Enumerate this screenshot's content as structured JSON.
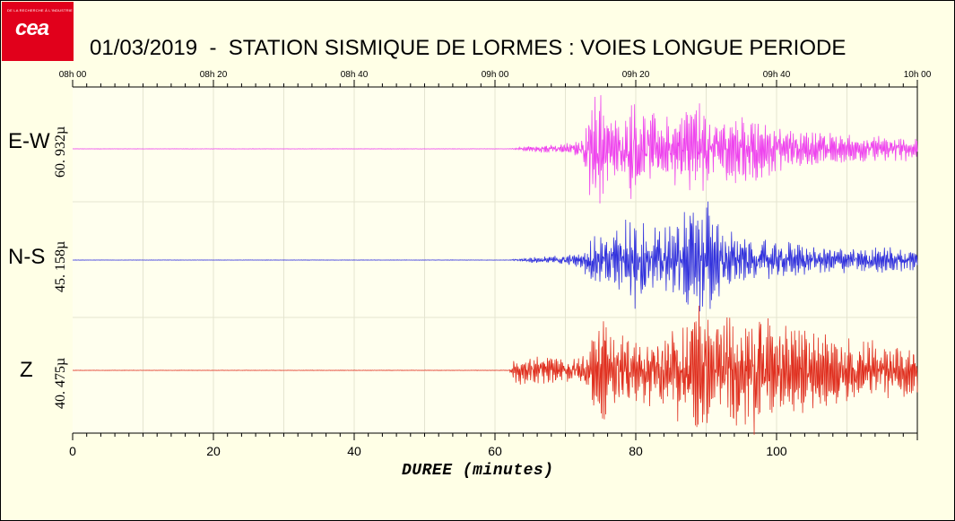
{
  "logo": {
    "tagline": "DE LA RECHERCHE À L'INDUSTRIE",
    "text": "cea"
  },
  "title": "01/03/2019  -  STATION SISMIQUE DE LORMES : VOIES LONGUE PERIODE",
  "chart_data": {
    "type": "line",
    "x_top_ticks": [
      "08h 00",
      "08h 20",
      "08h 40",
      "09h 00",
      "09h 20",
      "09h 40",
      "10h 00"
    ],
    "x_bottom_ticks": [
      "0",
      "20",
      "40",
      "60",
      "80",
      "100"
    ],
    "xlabel": "DUREE (minutes)",
    "xlim": [
      0,
      120
    ],
    "grid": true,
    "series": [
      {
        "name": "E-W",
        "amplitude_label": "60. 932µ",
        "color": "#ee44ee",
        "envelope": [
          [
            0,
            0.002
          ],
          [
            62,
            0.003
          ],
          [
            63,
            0.02
          ],
          [
            66,
            0.05
          ],
          [
            70,
            0.08
          ],
          [
            72.5,
            0.12
          ],
          [
            73.5,
            0.7
          ],
          [
            75,
            0.95
          ],
          [
            76,
            0.6
          ],
          [
            78,
            0.3
          ],
          [
            80,
            1.0
          ],
          [
            81,
            0.55
          ],
          [
            84,
            0.45
          ],
          [
            89,
            0.75
          ],
          [
            91,
            0.35
          ],
          [
            95,
            0.6
          ],
          [
            98,
            0.45
          ],
          [
            102,
            0.3
          ],
          [
            110,
            0.2
          ],
          [
            120,
            0.18
          ]
        ]
      },
      {
        "name": "N-S",
        "amplitude_label": "45. 158µ",
        "color": "#3333dd",
        "envelope": [
          [
            0,
            0.002
          ],
          [
            62,
            0.003
          ],
          [
            63,
            0.02
          ],
          [
            66,
            0.05
          ],
          [
            70,
            0.08
          ],
          [
            72.5,
            0.12
          ],
          [
            73.5,
            0.45
          ],
          [
            76,
            0.35
          ],
          [
            79,
            0.7
          ],
          [
            80,
            1.0
          ],
          [
            82,
            0.5
          ],
          [
            85,
            0.55
          ],
          [
            87,
            0.8
          ],
          [
            88.5,
            0.9
          ],
          [
            90,
            1.0
          ],
          [
            92,
            0.55
          ],
          [
            95,
            0.35
          ],
          [
            100,
            0.3
          ],
          [
            110,
            0.2
          ],
          [
            120,
            0.2
          ]
        ]
      },
      {
        "name": "Z",
        "amplitude_label": "40. 475µ",
        "color": "#e03020",
        "envelope": [
          [
            0,
            0.002
          ],
          [
            62,
            0.003
          ],
          [
            63,
            0.2
          ],
          [
            66,
            0.2
          ],
          [
            70,
            0.15
          ],
          [
            73,
            0.3
          ],
          [
            75,
            0.95
          ],
          [
            77,
            0.5
          ],
          [
            80,
            0.45
          ],
          [
            84,
            0.55
          ],
          [
            89,
            1.0
          ],
          [
            91,
            0.7
          ],
          [
            94,
            0.85
          ],
          [
            98,
            0.9
          ],
          [
            100,
            0.65
          ],
          [
            105,
            0.55
          ],
          [
            110,
            0.45
          ],
          [
            120,
            0.35
          ]
        ]
      }
    ]
  }
}
